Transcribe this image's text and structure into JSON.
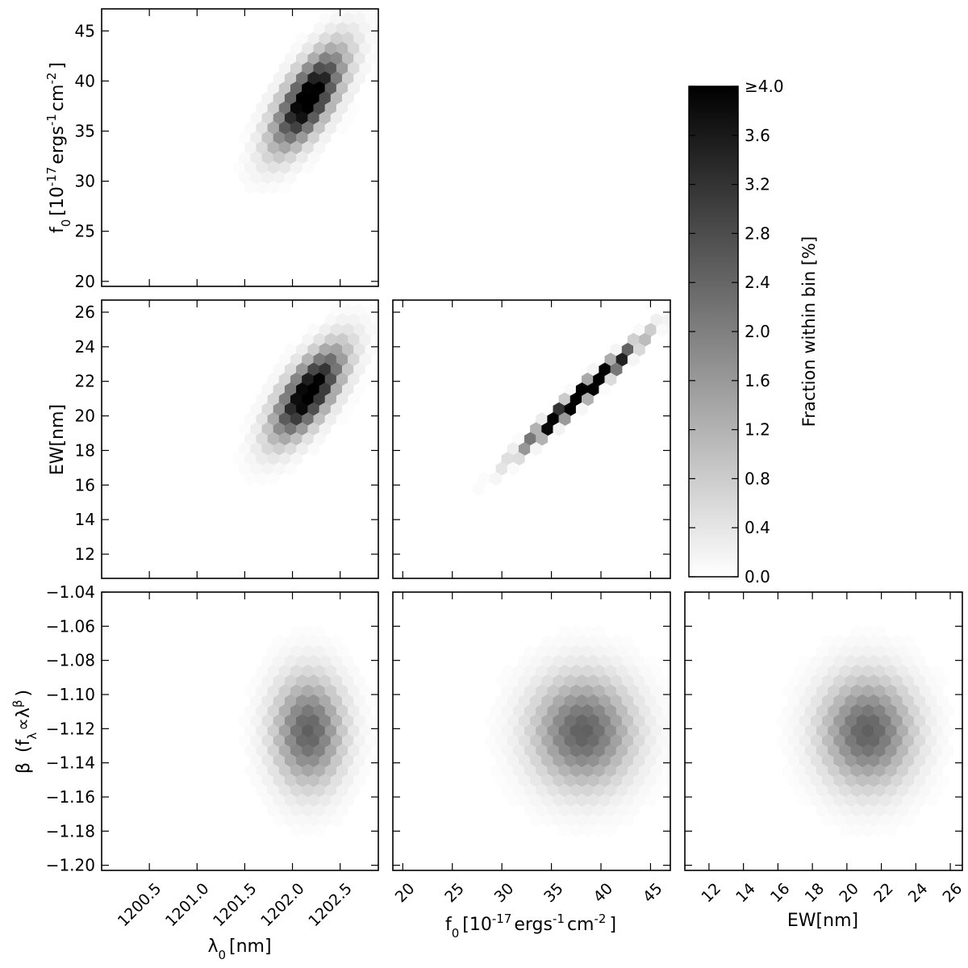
{
  "chart_data": [
    {
      "type": "heatmap",
      "panel": "lambda0-vs-f0",
      "xlabel": "",
      "ylabel": "f0 [10^-17 ergs^-1 cm^-2]",
      "xlim": [
        1200.0,
        1202.9
      ],
      "ylim": [
        19.5,
        47.2
      ],
      "xticks": [
        1200.5,
        1201.0,
        1201.5,
        1202.0,
        1202.5
      ],
      "yticks": [
        20,
        25,
        30,
        35,
        40,
        45
      ],
      "ytick_labels": [
        "20",
        "25",
        "30",
        "35",
        "40",
        "45"
      ],
      "show_xtick_labels": false,
      "show_ytick_labels": true,
      "center": [
        1202.17,
        38.2
      ],
      "spread": [
        0.24,
        3.2
      ],
      "rho": 0.7,
      "peak": 4.5
    },
    {
      "type": "heatmap",
      "panel": "lambda0-vs-EW",
      "xlabel": "",
      "ylabel": "EW[nm]",
      "xlim": [
        1200.0,
        1202.9
      ],
      "ylim": [
        10.6,
        26.7
      ],
      "xticks": [
        1200.5,
        1201.0,
        1201.5,
        1202.0,
        1202.5
      ],
      "yticks": [
        12,
        14,
        16,
        18,
        20,
        22,
        24,
        26
      ],
      "ytick_labels": [
        "12",
        "14",
        "16",
        "18",
        "20",
        "22",
        "24",
        "26"
      ],
      "show_xtick_labels": false,
      "show_ytick_labels": true,
      "center": [
        1202.17,
        21.3
      ],
      "spread": [
        0.24,
        1.7
      ],
      "rho": 0.7,
      "peak": 4.5
    },
    {
      "type": "heatmap",
      "panel": "f0-vs-EW",
      "xlabel": "",
      "ylabel": "",
      "xlim": [
        19.0,
        47.0
      ],
      "ylim": [
        10.6,
        26.7
      ],
      "xticks": [
        20,
        25,
        30,
        35,
        40,
        45
      ],
      "yticks": [
        12,
        14,
        16,
        18,
        20,
        22,
        24,
        26
      ],
      "show_xtick_labels": false,
      "show_ytick_labels": false,
      "center": [
        38.0,
        21.2
      ],
      "spread": [
        3.3,
        1.75
      ],
      "rho": 0.985,
      "peak": 8.0
    },
    {
      "type": "heatmap",
      "panel": "lambda0-vs-beta",
      "xlabel": "λ0 [nm]",
      "ylabel": "β (fλ ∝ λ^β)",
      "xlim": [
        1200.0,
        1202.9
      ],
      "ylim": [
        -1.203,
        -1.04
      ],
      "xticks": [
        1200.5,
        1201.0,
        1201.5,
        1202.0,
        1202.5
      ],
      "xtick_labels": [
        "1200.5",
        "1201.0",
        "1201.5",
        "1202.0",
        "1202.5"
      ],
      "yticks": [
        -1.04,
        -1.06,
        -1.08,
        -1.1,
        -1.12,
        -1.14,
        -1.16,
        -1.18,
        -1.2
      ],
      "ytick_labels": [
        "−1.04",
        "−1.06",
        "−1.08",
        "−1.10",
        "−1.12",
        "−1.14",
        "−1.16",
        "−1.18",
        "−1.20"
      ],
      "show_xtick_labels": true,
      "show_ytick_labels": true,
      "center": [
        1202.17,
        -1.122
      ],
      "spread": [
        0.24,
        0.021
      ],
      "rho": 0.0,
      "peak": 2.5
    },
    {
      "type": "heatmap",
      "panel": "f0-vs-beta",
      "xlabel": "f0 [10^-17 ergs^-1 cm^-2]",
      "ylabel": "",
      "xlim": [
        19.0,
        47.0
      ],
      "ylim": [
        -1.203,
        -1.04
      ],
      "xticks": [
        20,
        25,
        30,
        35,
        40,
        45
      ],
      "xtick_labels": [
        "20",
        "25",
        "30",
        "35",
        "40",
        "45"
      ],
      "yticks": [
        -1.04,
        -1.06,
        -1.08,
        -1.1,
        -1.12,
        -1.14,
        -1.16,
        -1.18,
        -1.2
      ],
      "show_xtick_labels": true,
      "show_ytick_labels": false,
      "center": [
        38.2,
        -1.122
      ],
      "spread": [
        3.3,
        0.021
      ],
      "rho": 0.0,
      "peak": 2.5
    },
    {
      "type": "heatmap",
      "panel": "EW-vs-beta",
      "xlabel": "EW[nm]",
      "ylabel": "",
      "xlim": [
        10.6,
        26.7
      ],
      "ylim": [
        -1.203,
        -1.04
      ],
      "xticks": [
        12,
        14,
        16,
        18,
        20,
        22,
        24,
        26
      ],
      "xtick_labels": [
        "12",
        "14",
        "16",
        "18",
        "20",
        "22",
        "24",
        "26"
      ],
      "yticks": [
        -1.04,
        -1.06,
        -1.08,
        -1.1,
        -1.12,
        -1.14,
        -1.16,
        -1.18,
        -1.2
      ],
      "show_xtick_labels": true,
      "show_ytick_labels": false,
      "center": [
        21.2,
        -1.122
      ],
      "spread": [
        1.75,
        0.021
      ],
      "rho": 0.0,
      "peak": 2.5
    }
  ],
  "colorbar": {
    "label": "Fraction within bin [%]",
    "range": [
      0.0,
      4.0
    ],
    "ticks": [
      0.0,
      0.4,
      0.8,
      1.2,
      1.6,
      2.0,
      2.4,
      2.8,
      3.2,
      3.6,
      4.0
    ],
    "tick_labels": [
      "0.0",
      "0.4",
      "0.8",
      "1.2",
      "1.6",
      "2.0",
      "2.4",
      "2.8",
      "3.2",
      "3.6",
      "≥4.0"
    ],
    "colormap": "gray_r"
  },
  "labels": {
    "f0_prefix": "f",
    "f0_sub": "0",
    "f0_bracket": "[10",
    "f0_exp1": "-17",
    "f0_ergs": "ergs",
    "f0_exp2": "-1",
    "f0_cm": "cm",
    "f0_exp3": "-2",
    "f0_close": "]",
    "ew": "EW[nm]",
    "lambda_sym": "λ",
    "lambda_sub": "0",
    "lambda_unit": "[nm]",
    "beta_sym": "β",
    "beta_open": "(f",
    "beta_sub": "λ",
    "beta_prop": "∝λ",
    "beta_exp": "β",
    "beta_close": ")"
  }
}
